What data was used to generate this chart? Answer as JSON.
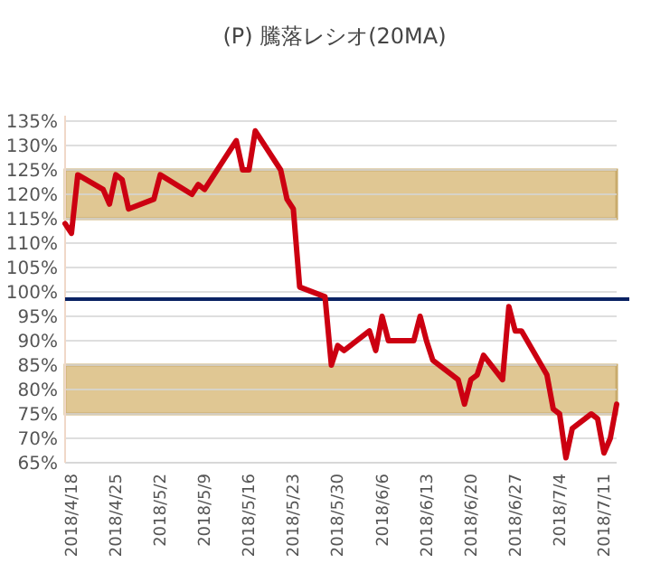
{
  "chart_data": {
    "type": "line",
    "title": "(P) 騰落レシオ(20MA)",
    "x": [
      "2018-04-17",
      "2018-04-18",
      "2018-04-19",
      "2018-04-23",
      "2018-04-24",
      "2018-04-25",
      "2018-04-26",
      "2018-04-27",
      "2018-05-01",
      "2018-05-02",
      "2018-05-07",
      "2018-05-08",
      "2018-05-09",
      "2018-05-14",
      "2018-05-15",
      "2018-05-16",
      "2018-05-17",
      "2018-05-21",
      "2018-05-22",
      "2018-05-23",
      "2018-05-24",
      "2018-05-28",
      "2018-05-29",
      "2018-05-30",
      "2018-05-31",
      "2018-06-04",
      "2018-06-05",
      "2018-06-06",
      "2018-06-07",
      "2018-06-11",
      "2018-06-12",
      "2018-06-13",
      "2018-06-14",
      "2018-06-18",
      "2018-06-19",
      "2018-06-20",
      "2018-06-21",
      "2018-06-22",
      "2018-06-25",
      "2018-06-26",
      "2018-06-27",
      "2018-06-28",
      "2018-07-02",
      "2018-07-03",
      "2018-07-04",
      "2018-07-05",
      "2018-07-06",
      "2018-07-09",
      "2018-07-10",
      "2018-07-11",
      "2018-07-12",
      "2018-07-13"
    ],
    "series": [
      {
        "color": "#cc0011",
        "values": [
          114,
          112,
          124,
          121,
          118,
          124,
          123,
          117,
          119,
          124,
          120,
          122,
          121,
          131,
          125,
          125,
          133,
          125,
          119,
          117,
          101,
          99,
          85,
          89,
          88,
          92,
          88,
          95,
          90,
          90,
          95,
          90,
          86,
          82,
          77,
          82,
          83,
          87,
          82,
          97,
          92,
          92,
          83,
          76,
          75,
          66,
          72,
          75,
          74,
          67,
          70,
          77
        ]
      }
    ],
    "xlim": [
      "2018-04-17",
      "2018-07-13"
    ],
    "xticks": [
      {
        "value": "2018-04-18",
        "label": "2018/4/18"
      },
      {
        "value": "2018-04-25",
        "label": "2018/4/25"
      },
      {
        "value": "2018-05-02",
        "label": "2018/5/2"
      },
      {
        "value": "2018-05-09",
        "label": "2018/5/9"
      },
      {
        "value": "2018-05-16",
        "label": "2018/5/16"
      },
      {
        "value": "2018-05-23",
        "label": "2018/5/23"
      },
      {
        "value": "2018-05-30",
        "label": "2018/5/30"
      },
      {
        "value": "2018-06-06",
        "label": "2018/6/6"
      },
      {
        "value": "2018-06-13",
        "label": "2018/6/13"
      },
      {
        "value": "2018-06-20",
        "label": "2018/6/20"
      },
      {
        "value": "2018-06-27",
        "label": "2018/6/27"
      },
      {
        "value": "2018-07-04",
        "label": "2018/7/4"
      },
      {
        "value": "2018-07-11",
        "label": "2018/7/11"
      }
    ],
    "ylim": [
      65,
      135
    ],
    "yticks": [
      {
        "value": 65,
        "label": "65%"
      },
      {
        "value": 70,
        "label": "70%"
      },
      {
        "value": 75,
        "label": "75%"
      },
      {
        "value": 80,
        "label": "80%"
      },
      {
        "value": 85,
        "label": "85%"
      },
      {
        "value": 90,
        "label": "90%"
      },
      {
        "value": 95,
        "label": "95%"
      },
      {
        "value": 100,
        "label": "100%"
      },
      {
        "value": 105,
        "label": "105%"
      },
      {
        "value": 110,
        "label": "110%"
      },
      {
        "value": 115,
        "label": "115%"
      },
      {
        "value": 120,
        "label": "120%"
      },
      {
        "value": 125,
        "label": "125%"
      },
      {
        "value": 130,
        "label": "130%"
      },
      {
        "value": 135,
        "label": "135%"
      }
    ],
    "grid": "y",
    "marker": "none",
    "line_style": "solid",
    "ref_lines": [
      {
        "axis": "y",
        "value": 98.5,
        "color": "#0a2263",
        "line_style": "solid"
      }
    ],
    "bands": [
      {
        "axis": "y",
        "from": 115,
        "to": 125,
        "color": "#e0c793"
      },
      {
        "axis": "y",
        "from": 75,
        "to": 85,
        "color": "#e0c793"
      }
    ]
  }
}
